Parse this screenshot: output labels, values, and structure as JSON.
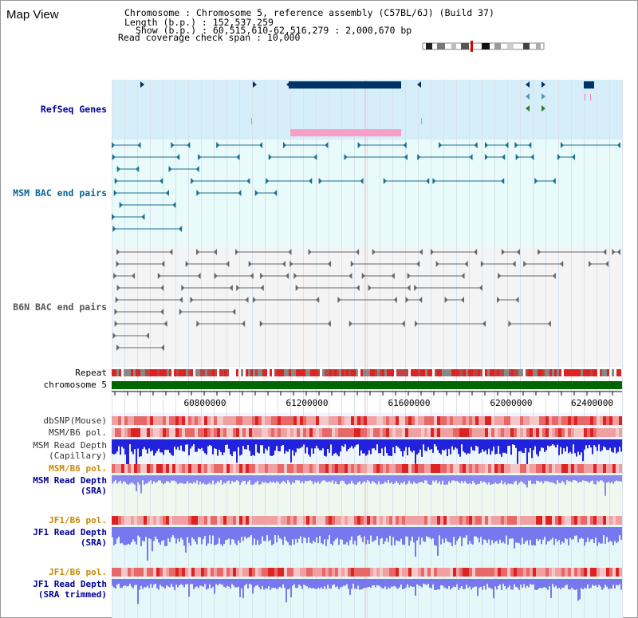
{
  "view": {
    "title": "Map View"
  },
  "info": {
    "lines": [
      "Chromosome   : Chromosome 5, reference assembly (C57BL/6J) (Build 37)",
      "Length (b.p.) : 152,537,259",
      "Show (b.p.) : 60,515,610-62,516,279 : 2,000,670 bp",
      "Read coverage check span : 10,000"
    ]
  },
  "tracks": {
    "refseq": {
      "label": "RefSeq Genes"
    },
    "msm_bac": {
      "label": "MSM BAC end pairs"
    },
    "b6n_bac": {
      "label": "B6N BAC end pairs"
    },
    "repeat": {
      "label": "Repeat"
    },
    "chromosome": {
      "label": "chromosome 5"
    },
    "dbsnp": {
      "label": "dbSNP(Mouse)"
    },
    "msm_b6_pol_1": {
      "label": "MSM/B6 pol."
    },
    "msm_depth_cap": {
      "label1": "MSM Read Depth",
      "label2": "(Capillary)"
    },
    "msm_b6_pol_2": {
      "label": "MSM/B6 pol."
    },
    "msm_depth_sra": {
      "label1": "MSM Read Depth",
      "label2": "(SRA)"
    },
    "jf1_b6_pol_1": {
      "label": "JF1/B6 pol."
    },
    "jf1_depth_sra": {
      "label1": "JF1 Read Depth",
      "label2": "(SRA)"
    },
    "jf1_b6_pol_2": {
      "label": "JF1/B6 pol."
    },
    "jf1_depth_trim": {
      "label1": "JF1 Read Depth",
      "label2": "(SRA trimmed)"
    }
  },
  "axis": {
    "ticks": [
      "60800000",
      "61200000",
      "61600000",
      "62000000",
      "62400000"
    ]
  },
  "colors": {
    "refseq_bg": "#d6eefa",
    "msm_bg": "#e8fafa",
    "b6n_bg": "#f4f4f4",
    "gene_dark": "#003366",
    "gene_pink": "#f5a0c8",
    "msm_line": "#1a6e8e",
    "b6n_line": "#666666",
    "chrom": "#006600",
    "label_blue": "#000099",
    "label_teal": "#006699",
    "label_orange": "#cc8800",
    "depth_cap": "#2222dd",
    "depth_sra": "#8888ee"
  }
}
